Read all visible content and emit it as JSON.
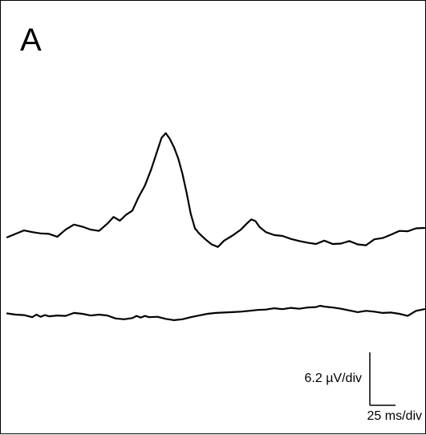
{
  "chart_data": {
    "type": "line",
    "panel_label": "A",
    "title": "",
    "xlabel": "",
    "ylabel": "",
    "axes_visible": false,
    "grid": false,
    "xlim": [
      0,
      100
    ],
    "ylim": [
      -20,
      50
    ],
    "series": [
      {
        "values": [
          [
            0,
            0.0
          ],
          [
            2,
            0.8
          ],
          [
            4,
            1.6
          ],
          [
            6,
            1.2
          ],
          [
            8,
            0.9
          ],
          [
            10,
            0.8
          ],
          [
            12,
            0.1
          ],
          [
            14,
            1.8
          ],
          [
            16,
            3.0
          ],
          [
            18,
            2.5
          ],
          [
            20,
            1.8
          ],
          [
            22,
            1.5
          ],
          [
            24,
            3.2
          ],
          [
            25.5,
            4.8
          ],
          [
            27,
            3.9
          ],
          [
            28.5,
            5.3
          ],
          [
            30,
            6.3
          ],
          [
            31.5,
            9.5
          ],
          [
            33,
            12.2
          ],
          [
            34.5,
            16.0
          ],
          [
            36,
            20.5
          ],
          [
            37,
            23.5
          ],
          [
            38,
            24.6
          ],
          [
            39,
            23.2
          ],
          [
            40,
            21.2
          ],
          [
            41,
            18.6
          ],
          [
            42,
            15.0
          ],
          [
            43,
            10.5
          ],
          [
            44,
            5.5
          ],
          [
            45,
            2.1
          ],
          [
            46,
            0.9
          ],
          [
            47.5,
            -0.5
          ],
          [
            49,
            -1.7
          ],
          [
            50.5,
            -2.3
          ],
          [
            52,
            -0.8
          ],
          [
            54,
            0.4
          ],
          [
            56,
            1.8
          ],
          [
            57.5,
            3.3
          ],
          [
            58.5,
            4.2
          ],
          [
            59.5,
            3.8
          ],
          [
            60.5,
            2.4
          ],
          [
            62,
            1.2
          ],
          [
            64,
            0.5
          ],
          [
            66,
            0.3
          ],
          [
            68,
            -0.4
          ],
          [
            70,
            -0.9
          ],
          [
            72,
            -1.3
          ],
          [
            74,
            -1.6
          ],
          [
            76,
            -0.8
          ],
          [
            78,
            -1.6
          ],
          [
            80,
            -1.5
          ],
          [
            82,
            -0.9
          ],
          [
            84,
            -1.7
          ],
          [
            86,
            -1.9
          ],
          [
            88,
            -0.5
          ],
          [
            90,
            -0.2
          ],
          [
            92,
            0.6
          ],
          [
            94,
            1.5
          ],
          [
            96,
            1.4
          ],
          [
            98,
            2.1
          ],
          [
            100,
            2.2
          ]
        ]
      },
      {
        "values": [
          [
            0,
            -18.0
          ],
          [
            2,
            -18.3
          ],
          [
            4,
            -18.4
          ],
          [
            6,
            -18.9
          ],
          [
            7,
            -18.3
          ],
          [
            8,
            -18.8
          ],
          [
            9,
            -18.4
          ],
          [
            10,
            -18.7
          ],
          [
            12,
            -18.5
          ],
          [
            14,
            -18.6
          ],
          [
            16,
            -17.9
          ],
          [
            18,
            -18.1
          ],
          [
            20,
            -18.5
          ],
          [
            22,
            -18.3
          ],
          [
            24,
            -18.5
          ],
          [
            26,
            -19.2
          ],
          [
            28,
            -19.4
          ],
          [
            30,
            -19.1
          ],
          [
            31,
            -18.6
          ],
          [
            32,
            -19.0
          ],
          [
            33,
            -18.6
          ],
          [
            34,
            -18.9
          ],
          [
            36,
            -18.8
          ],
          [
            38,
            -19.3
          ],
          [
            40,
            -19.6
          ],
          [
            42,
            -19.4
          ],
          [
            44,
            -18.9
          ],
          [
            46,
            -18.5
          ],
          [
            48,
            -18.1
          ],
          [
            50,
            -17.9
          ],
          [
            52,
            -17.8
          ],
          [
            54,
            -17.7
          ],
          [
            56,
            -17.6
          ],
          [
            58,
            -17.4
          ],
          [
            60,
            -17.2
          ],
          [
            62,
            -17.1
          ],
          [
            64,
            -16.8
          ],
          [
            66,
            -17.0
          ],
          [
            68,
            -16.7
          ],
          [
            70,
            -16.9
          ],
          [
            72,
            -16.6
          ],
          [
            74,
            -16.5
          ],
          [
            75,
            -16.2
          ],
          [
            76,
            -16.4
          ],
          [
            78,
            -16.6
          ],
          [
            80,
            -16.9
          ],
          [
            82,
            -17.3
          ],
          [
            84,
            -17.7
          ],
          [
            86,
            -17.4
          ],
          [
            88,
            -17.6
          ],
          [
            90,
            -17.9
          ],
          [
            92,
            -17.8
          ],
          [
            94,
            -18.1
          ],
          [
            96,
            -18.6
          ],
          [
            98,
            -17.4
          ],
          [
            100,
            -17.0
          ]
        ]
      }
    ],
    "scale_bar": {
      "voltage_label": "6.2 µV/div",
      "time_label": "25 ms/div",
      "voltage_value": 6.2,
      "voltage_unit": "µV",
      "time_value": 25,
      "time_unit": "ms"
    },
    "colors": {
      "trace": "#000000",
      "background": "#ffffff",
      "border": "#000000"
    }
  }
}
